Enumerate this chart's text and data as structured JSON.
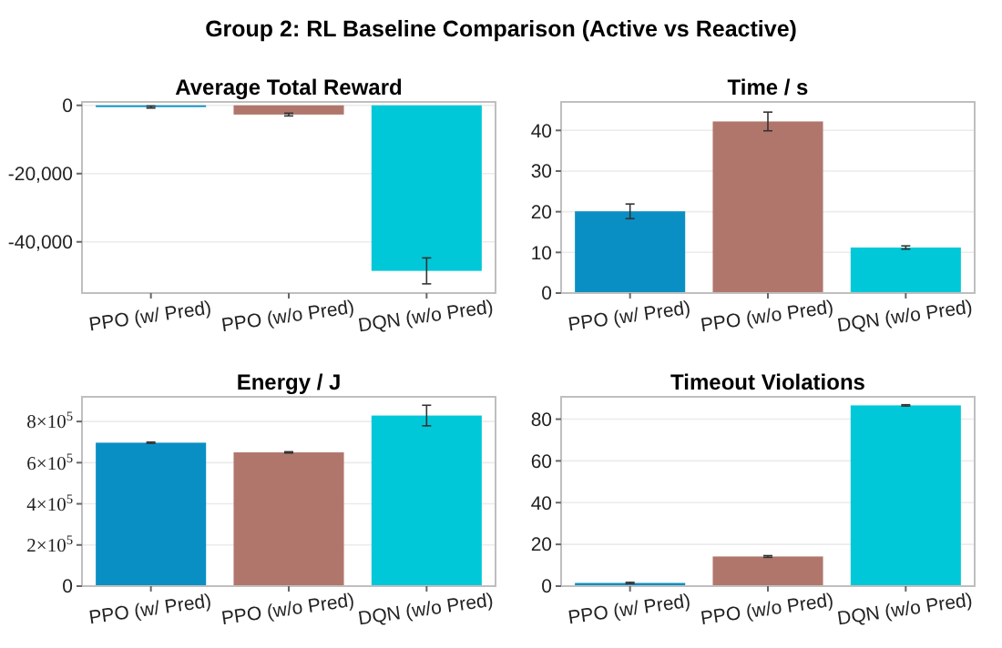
{
  "chart_data": [
    {
      "type": "bar",
      "title": "Average Total Reward",
      "subtitle": "Group 2: RL Baseline Comparison (Active vs Reactive)",
      "categories": [
        "PPO (w/ Pred)",
        "PPO (w/o Pred)",
        "DQN (w/o Pred)"
      ],
      "values": [
        -500,
        -2700,
        -48500
      ],
      "errors": [
        300,
        400,
        3800
      ],
      "colors": [
        "#0a8fc4",
        "#b0766c",
        "#00c8d8"
      ],
      "ylim": [
        -55000,
        1000
      ],
      "yticks": [
        {
          "value": -40000,
          "label": "-40,000"
        },
        {
          "value": -20000,
          "label": "-20,000"
        },
        0
      ],
      "grid": "y"
    },
    {
      "type": "bar",
      "title": "Time / s",
      "categories": [
        "PPO (w/ Pred)",
        "PPO (w/o Pred)",
        "DQN (w/o Pred)"
      ],
      "values": [
        20.1,
        42.2,
        11.2
      ],
      "errors": [
        1.8,
        2.3,
        0.4
      ],
      "colors": [
        "#0a8fc4",
        "#b0766c",
        "#00c8d8"
      ],
      "ylim": [
        0,
        47
      ],
      "yticks": [
        0,
        10,
        20,
        30,
        40
      ],
      "grid": "y"
    },
    {
      "type": "bar",
      "title": "Energy / J",
      "categories": [
        "PPO (w/ Pred)",
        "PPO (w/o Pred)",
        "DQN (w/o Pred)"
      ],
      "values": [
        697000,
        650000,
        829000
      ],
      "errors": [
        3000,
        3000,
        50000
      ],
      "colors": [
        "#0a8fc4",
        "#b0766c",
        "#00c8d8"
      ],
      "ylim": [
        0,
        920000
      ],
      "yticks": [
        0,
        {
          "value": 200000,
          "label": "2×10$^{5}$"
        },
        {
          "value": 400000,
          "label": "4×10$^{5}$"
        },
        {
          "value": 600000,
          "label": "6×10$^{5}$"
        },
        {
          "value": 800000,
          "label": "8×10$^{5}$"
        }
      ],
      "grid": "y"
    },
    {
      "type": "bar",
      "title": "Timeout Violations",
      "categories": [
        "PPO (w/ Pred)",
        "PPO (w/o Pred)",
        "DQN (w/o Pred)"
      ],
      "values": [
        1.5,
        14.2,
        86.6
      ],
      "errors": [
        0.3,
        0.4,
        0.3
      ],
      "colors": [
        "#0a8fc4",
        "#b0766c",
        "#00c8d8"
      ],
      "ylim": [
        0,
        90.7
      ],
      "yticks": [
        0,
        20,
        40,
        60,
        80
      ],
      "grid": "y"
    }
  ]
}
